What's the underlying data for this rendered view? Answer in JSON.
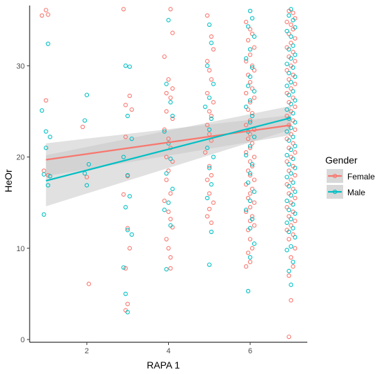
{
  "chart_data": {
    "type": "scatter",
    "title": "",
    "xlabel": "RAPA 1",
    "ylabel": "HeOr",
    "xlim": [
      0.6,
      7.4
    ],
    "ylim": [
      -0.3,
      36.6
    ],
    "x_ticks": [
      2,
      4,
      6
    ],
    "y_ticks": [
      0,
      10,
      20,
      30
    ],
    "grid": false,
    "legend": {
      "title": "Gender",
      "placement": "right",
      "entries": [
        "Female",
        "Male"
      ]
    },
    "colors": {
      "Female": "#f8766d",
      "Male": "#00bfc4",
      "ribbon": "#c8c8c8"
    },
    "series": [
      {
        "name": "Female",
        "points": [
          [
            0.9,
            35.5
          ],
          [
            1.0,
            36.1
          ],
          [
            1.05,
            35.6
          ],
          [
            1.0,
            26.2
          ],
          [
            1.05,
            18.0
          ],
          [
            0.95,
            18.5
          ],
          [
            1.9,
            23.3
          ],
          [
            2.05,
            6.1
          ],
          [
            2.0,
            17.8
          ],
          [
            2.9,
            36.2
          ],
          [
            2.95,
            25.7
          ],
          [
            3.05,
            26.7
          ],
          [
            3.1,
            25.2
          ],
          [
            2.95,
            22.2
          ],
          [
            3.0,
            17.9
          ],
          [
            2.9,
            15.9
          ],
          [
            3.0,
            12.2
          ],
          [
            3.05,
            10.0
          ],
          [
            2.95,
            7.8
          ],
          [
            3.0,
            3.9
          ],
          [
            2.95,
            3.2
          ],
          [
            4.05,
            36.2
          ],
          [
            4.1,
            33.6
          ],
          [
            3.9,
            31.0
          ],
          [
            4.0,
            28.5
          ],
          [
            4.1,
            27.5
          ],
          [
            3.95,
            27.0
          ],
          [
            4.05,
            26.5
          ],
          [
            3.95,
            25.0
          ],
          [
            4.1,
            24.2
          ],
          [
            3.9,
            23.0
          ],
          [
            4.0,
            22.0
          ],
          [
            4.05,
            21.0
          ],
          [
            3.95,
            20.0
          ],
          [
            4.1,
            19.5
          ],
          [
            4.0,
            18.5
          ],
          [
            3.95,
            17.5
          ],
          [
            4.05,
            16.0
          ],
          [
            3.9,
            15.2
          ],
          [
            4.0,
            14.0
          ],
          [
            4.05,
            13.2
          ],
          [
            4.1,
            12.3
          ],
          [
            3.95,
            11.0
          ],
          [
            4.0,
            10.0
          ],
          [
            4.05,
            9.0
          ],
          [
            4.05,
            7.8
          ],
          [
            4.95,
            35.5
          ],
          [
            5.05,
            33.2
          ],
          [
            5.1,
            31.8
          ],
          [
            4.95,
            30.5
          ],
          [
            5.0,
            29.5
          ],
          [
            5.05,
            28.5
          ],
          [
            4.95,
            27.0
          ],
          [
            5.1,
            26.0
          ],
          [
            5.0,
            25.0
          ],
          [
            5.05,
            24.5
          ],
          [
            4.95,
            23.5
          ],
          [
            5.0,
            22.5
          ],
          [
            5.05,
            21.8
          ],
          [
            4.9,
            20.5
          ],
          [
            5.0,
            19.0
          ],
          [
            5.05,
            18.0
          ],
          [
            4.95,
            17.5
          ],
          [
            5.0,
            16.0
          ],
          [
            5.1,
            15.0
          ],
          [
            5.0,
            14.3
          ],
          [
            4.95,
            13.5
          ],
          [
            5.05,
            12.8
          ],
          [
            5.9,
            34.8
          ],
          [
            6.0,
            34.0
          ],
          [
            6.05,
            33.5
          ],
          [
            5.95,
            32.8
          ],
          [
            6.1,
            32.0
          ],
          [
            6.0,
            31.2
          ],
          [
            5.9,
            30.5
          ],
          [
            6.05,
            30.0
          ],
          [
            6.1,
            29.5
          ],
          [
            5.95,
            29.0
          ],
          [
            6.0,
            28.2
          ],
          [
            6.05,
            27.5
          ],
          [
            5.9,
            27.0
          ],
          [
            6.1,
            26.5
          ],
          [
            6.0,
            26.0
          ],
          [
            5.95,
            25.2
          ],
          [
            6.05,
            24.8
          ],
          [
            6.0,
            24.0
          ],
          [
            5.9,
            23.5
          ],
          [
            6.1,
            23.0
          ],
          [
            6.0,
            22.5
          ],
          [
            5.95,
            22.0
          ],
          [
            6.05,
            21.5
          ],
          [
            6.0,
            21.0
          ],
          [
            5.9,
            20.5
          ],
          [
            6.1,
            20.0
          ],
          [
            6.0,
            19.5
          ],
          [
            6.05,
            19.0
          ],
          [
            5.95,
            18.5
          ],
          [
            6.0,
            18.0
          ],
          [
            6.1,
            17.5
          ],
          [
            5.9,
            17.0
          ],
          [
            6.05,
            16.5
          ],
          [
            6.0,
            16.0
          ],
          [
            5.95,
            15.5
          ],
          [
            6.1,
            15.0
          ],
          [
            6.0,
            14.5
          ],
          [
            5.9,
            14.0
          ],
          [
            6.05,
            13.5
          ],
          [
            6.0,
            13.0
          ],
          [
            6.1,
            12.5
          ],
          [
            5.95,
            12.0
          ],
          [
            6.0,
            11.0
          ],
          [
            6.05,
            10.0
          ],
          [
            5.95,
            9.5
          ],
          [
            6.0,
            8.5
          ],
          [
            5.9,
            8.0
          ],
          [
            6.95,
            36.0
          ],
          [
            7.05,
            35.8
          ],
          [
            7.1,
            35.2
          ],
          [
            6.9,
            34.8
          ],
          [
            7.0,
            34.5
          ],
          [
            7.05,
            34.0
          ],
          [
            6.95,
            33.5
          ],
          [
            7.1,
            33.0
          ],
          [
            7.0,
            32.5
          ],
          [
            6.9,
            32.0
          ],
          [
            7.05,
            31.5
          ],
          [
            6.95,
            31.0
          ],
          [
            7.1,
            30.5
          ],
          [
            7.0,
            30.0
          ],
          [
            6.9,
            29.5
          ],
          [
            7.05,
            29.0
          ],
          [
            6.95,
            28.5
          ],
          [
            7.1,
            28.0
          ],
          [
            7.0,
            27.5
          ],
          [
            6.9,
            27.0
          ],
          [
            7.05,
            26.5
          ],
          [
            6.95,
            26.0
          ],
          [
            7.1,
            25.5
          ],
          [
            7.0,
            25.0
          ],
          [
            6.9,
            24.5
          ],
          [
            7.05,
            24.0
          ],
          [
            6.95,
            23.5
          ],
          [
            7.1,
            23.0
          ],
          [
            7.0,
            22.5
          ],
          [
            6.9,
            22.0
          ],
          [
            7.05,
            21.5
          ],
          [
            6.95,
            21.0
          ],
          [
            7.1,
            20.5
          ],
          [
            7.0,
            20.0
          ],
          [
            6.9,
            19.5
          ],
          [
            7.05,
            19.0
          ],
          [
            6.95,
            18.5
          ],
          [
            7.1,
            18.0
          ],
          [
            7.0,
            17.5
          ],
          [
            6.9,
            17.0
          ],
          [
            7.05,
            16.5
          ],
          [
            6.95,
            16.0
          ],
          [
            7.1,
            15.5
          ],
          [
            7.0,
            15.0
          ],
          [
            6.9,
            14.5
          ],
          [
            7.05,
            14.0
          ],
          [
            6.95,
            13.5
          ],
          [
            7.1,
            13.0
          ],
          [
            7.0,
            12.5
          ],
          [
            6.9,
            12.0
          ],
          [
            7.05,
            11.5
          ],
          [
            6.95,
            11.0
          ],
          [
            7.1,
            10.0
          ],
          [
            7.0,
            9.0
          ],
          [
            7.05,
            8.0
          ],
          [
            6.95,
            7.0
          ],
          [
            7.0,
            4.3
          ],
          [
            6.95,
            0.3
          ]
        ]
      },
      {
        "name": "Male",
        "points": [
          [
            1.05,
            32.4
          ],
          [
            0.9,
            25.1
          ],
          [
            1.0,
            22.8
          ],
          [
            1.1,
            22.2
          ],
          [
            1.0,
            21.0
          ],
          [
            0.95,
            18.1
          ],
          [
            1.1,
            17.9
          ],
          [
            1.05,
            16.9
          ],
          [
            0.95,
            13.7
          ],
          [
            2.0,
            26.8
          ],
          [
            1.95,
            24.0
          ],
          [
            2.05,
            19.2
          ],
          [
            1.95,
            18.2
          ],
          [
            2.0,
            16.9
          ],
          [
            2.95,
            30.0
          ],
          [
            3.05,
            29.9
          ],
          [
            3.0,
            24.5
          ],
          [
            3.1,
            22.0
          ],
          [
            2.9,
            20.0
          ],
          [
            3.0,
            18.0
          ],
          [
            3.05,
            15.7
          ],
          [
            2.95,
            14.5
          ],
          [
            3.0,
            12.0
          ],
          [
            3.1,
            11.5
          ],
          [
            2.9,
            7.9
          ],
          [
            2.95,
            5.0
          ],
          [
            3.0,
            3.0
          ],
          [
            4.0,
            35.0
          ],
          [
            3.95,
            28.0
          ],
          [
            4.05,
            26.0
          ],
          [
            4.1,
            24.5
          ],
          [
            3.9,
            22.8
          ],
          [
            4.0,
            21.5
          ],
          [
            4.05,
            19.8
          ],
          [
            3.95,
            18.2
          ],
          [
            4.1,
            16.5
          ],
          [
            4.0,
            15.0
          ],
          [
            3.9,
            14.2
          ],
          [
            4.05,
            12.5
          ],
          [
            3.95,
            7.7
          ],
          [
            5.0,
            34.5
          ],
          [
            5.05,
            32.5
          ],
          [
            4.95,
            30.0
          ],
          [
            5.1,
            28.0
          ],
          [
            5.0,
            26.5
          ],
          [
            4.9,
            25.5
          ],
          [
            5.05,
            24.2
          ],
          [
            5.0,
            23.0
          ],
          [
            4.95,
            21.0
          ],
          [
            5.1,
            20.0
          ],
          [
            5.0,
            18.8
          ],
          [
            5.05,
            17.0
          ],
          [
            4.95,
            15.5
          ],
          [
            5.05,
            11.8
          ],
          [
            5.0,
            8.2
          ],
          [
            6.0,
            36.0
          ],
          [
            6.05,
            35.2
          ],
          [
            5.95,
            34.3
          ],
          [
            6.1,
            33.2
          ],
          [
            6.0,
            31.8
          ],
          [
            5.9,
            30.8
          ],
          [
            6.05,
            29.8
          ],
          [
            6.0,
            28.8
          ],
          [
            5.95,
            27.8
          ],
          [
            6.1,
            27.2
          ],
          [
            6.0,
            26.2
          ],
          [
            5.9,
            25.5
          ],
          [
            6.05,
            24.5
          ],
          [
            6.0,
            23.8
          ],
          [
            5.95,
            22.8
          ],
          [
            6.1,
            22.2
          ],
          [
            6.0,
            21.2
          ],
          [
            5.9,
            20.2
          ],
          [
            6.05,
            19.2
          ],
          [
            6.0,
            18.2
          ],
          [
            5.95,
            17.2
          ],
          [
            6.1,
            16.2
          ],
          [
            6.0,
            15.2
          ],
          [
            5.9,
            14.2
          ],
          [
            6.05,
            13.2
          ],
          [
            6.0,
            12.2
          ],
          [
            6.1,
            10.5
          ],
          [
            6.0,
            9.0
          ],
          [
            5.95,
            5.3
          ],
          [
            7.0,
            36.2
          ],
          [
            6.95,
            35.5
          ],
          [
            7.05,
            35.0
          ],
          [
            7.1,
            34.2
          ],
          [
            6.9,
            33.8
          ],
          [
            7.0,
            33.2
          ],
          [
            7.05,
            32.2
          ],
          [
            6.95,
            31.8
          ],
          [
            7.1,
            31.2
          ],
          [
            7.0,
            30.8
          ],
          [
            6.9,
            30.2
          ],
          [
            7.05,
            29.8
          ],
          [
            6.95,
            29.2
          ],
          [
            7.1,
            28.8
          ],
          [
            7.0,
            28.2
          ],
          [
            6.9,
            27.8
          ],
          [
            7.05,
            27.2
          ],
          [
            6.95,
            26.8
          ],
          [
            7.1,
            26.2
          ],
          [
            7.0,
            25.8
          ],
          [
            6.9,
            25.2
          ],
          [
            7.05,
            24.8
          ],
          [
            6.95,
            24.2
          ],
          [
            7.1,
            23.8
          ],
          [
            7.0,
            23.2
          ],
          [
            6.9,
            22.8
          ],
          [
            7.05,
            22.2
          ],
          [
            6.95,
            21.8
          ],
          [
            7.1,
            21.2
          ],
          [
            7.0,
            20.8
          ],
          [
            6.9,
            20.2
          ],
          [
            7.05,
            19.8
          ],
          [
            6.95,
            19.2
          ],
          [
            7.1,
            18.8
          ],
          [
            7.0,
            18.2
          ],
          [
            6.9,
            17.8
          ],
          [
            7.05,
            17.2
          ],
          [
            6.95,
            16.8
          ],
          [
            7.1,
            16.2
          ],
          [
            7.0,
            15.8
          ],
          [
            6.9,
            15.2
          ],
          [
            7.05,
            14.8
          ],
          [
            6.95,
            14.2
          ],
          [
            7.1,
            13.8
          ],
          [
            7.0,
            13.2
          ],
          [
            6.9,
            12.8
          ],
          [
            7.05,
            12.2
          ],
          [
            6.95,
            11.8
          ],
          [
            7.1,
            11.2
          ],
          [
            7.0,
            10.2
          ],
          [
            6.9,
            9.8
          ],
          [
            7.05,
            8.5
          ],
          [
            6.95,
            7.5
          ],
          [
            7.0,
            6.0
          ]
        ]
      }
    ],
    "trend_lines": [
      {
        "name": "Female",
        "x": [
          1,
          7
        ],
        "y": [
          19.7,
          23.5
        ],
        "ci_low": [
          17.9,
          22.4
        ],
        "ci_high": [
          21.5,
          24.6
        ]
      },
      {
        "name": "Male",
        "x": [
          1,
          7
        ],
        "y": [
          17.4,
          24.3
        ],
        "ci_low": [
          14.6,
          23.0
        ],
        "ci_high": [
          20.2,
          25.6
        ]
      }
    ]
  }
}
